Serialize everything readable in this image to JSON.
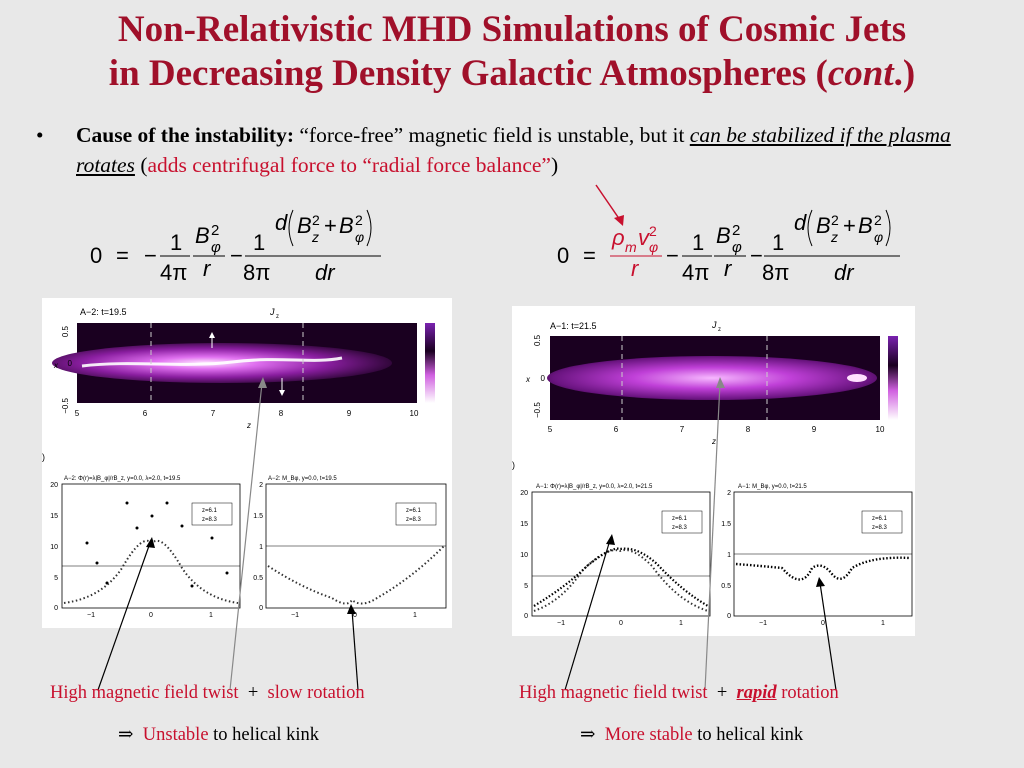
{
  "slide": {
    "title_line1": "Non-Relativistic MHD Simulations of Cosmic Jets",
    "title_line2_pre": "in Decreasing Density Galactic Atmospheres (",
    "title_line2_em": "cont",
    "title_line2_post": ".)",
    "bullet_symbol": "•",
    "bullet_bold": "Cause of the instability:",
    "bullet_text1": " “force-free” magnetic field is unstable, but it ",
    "bullet_underlined": "can be stabilized if the plasma rotates",
    "bullet_paren_open": " (",
    "bullet_red": "adds centrifugal force to “radial force balance”",
    "bullet_paren_close": ")"
  },
  "equations": {
    "left": {
      "lhs": "0",
      "eq": "=",
      "minus": "−",
      "one": "1",
      "four_pi": "4π",
      "eight_pi": "8π",
      "b": "B",
      "phi": "φ",
      "two": "2",
      "r": "r",
      "d": "d",
      "z": "z",
      "plus": "+",
      "dr": "dr"
    },
    "right": {
      "rho": "ρ",
      "m": "m",
      "v": "v"
    }
  },
  "left_figure": {
    "image_label": "A−2:  t=19.5",
    "colorbar_label": "J",
    "colorbar_sub": "z",
    "x_ticks": [
      "5",
      "6",
      "7",
      "8",
      "9",
      "10"
    ],
    "x_label": "z",
    "y_ticks": [
      "0.5",
      "0",
      "−0.5"
    ],
    "y_label": "x",
    "plot1_title": "A−2:  Φ(r)=λ|B_φ|/rB_z,  y=0.0,  λ=2.0,  t=19.5",
    "plot1_y_ticks": [
      "20",
      "15",
      "10",
      "5",
      "0"
    ],
    "plot1_x_ticks": [
      "−1",
      "0",
      "1"
    ],
    "plot2_title": "A−2:  M_Bφ,  y=0.0,  t=19.5",
    "plot2_y_ticks": [
      "2",
      "1.5",
      "1",
      "0.5",
      "0"
    ],
    "plot2_x_ticks": [
      "−1",
      "0",
      "1"
    ],
    "legend1": "z=6.1",
    "legend2": "z=8.3",
    "side_mark": ")"
  },
  "right_figure": {
    "image_label": "A−1:  t=21.5",
    "colorbar_label": "J",
    "colorbar_sub": "z",
    "x_ticks": [
      "5",
      "6",
      "7",
      "8",
      "9",
      "10"
    ],
    "x_label": "z",
    "y_ticks": [
      "0.5",
      "0",
      "−0.5"
    ],
    "y_label": "x",
    "plot1_title": "A−1:  Φ(r)=λ|B_φ|/rB_z,  y=0.0,  λ=2.0,  t=21.5",
    "plot1_y_ticks": [
      "20",
      "15",
      "10",
      "5",
      "0"
    ],
    "plot1_x_ticks": [
      "−1",
      "0",
      "1"
    ],
    "plot2_title": "A−1:  M_Bφ,  y=0.0,  t=21.5",
    "plot2_y_ticks": [
      "2",
      "1.5",
      "1",
      "0.5",
      "0"
    ],
    "plot2_x_ticks": [
      "−1",
      "0",
      "1"
    ],
    "legend1": "z=6.1",
    "legend2": "z=8.3",
    "side_mark": ")"
  },
  "captions": {
    "left_line1_a": "High magnetic field twist",
    "plus": "+",
    "left_line1_b": "slow rotation",
    "implies": "⇒",
    "left_line2_red": "Unstable",
    "left_line2_black": " to helical kink",
    "right_line1_a": "High magnetic field twist",
    "right_line1_b": "rapid",
    "right_line1_c": " rotation",
    "right_line2_red": "More stable",
    "right_line2_black": " to helical kink"
  },
  "colors": {
    "title": "#a0102a",
    "accent_red": "#c8102e",
    "background": "#e8e8e8",
    "jet_purple": "#8a1ea0"
  }
}
